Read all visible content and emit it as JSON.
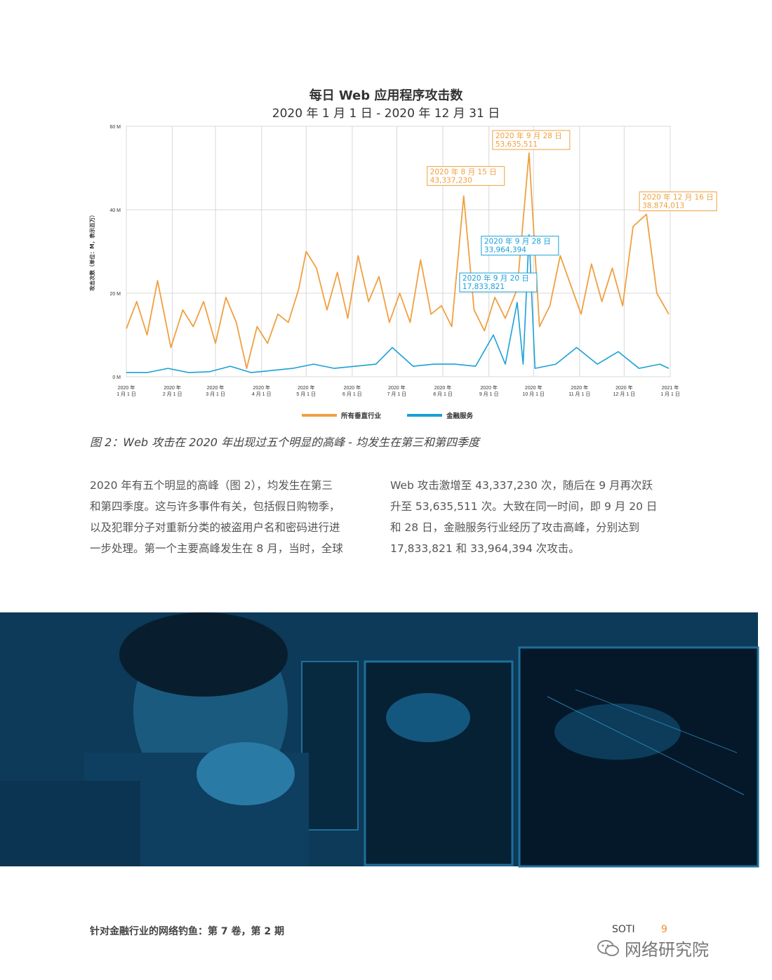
{
  "chart_data": {
    "type": "line",
    "title": "每日 Web 应用程序攻击数",
    "subtitle": "2020 年 1 月 1 日 - 2020 年 12 月 31 日",
    "ylabel": "攻击次数（单位：M，表示百万）",
    "ylim": [
      0,
      60
    ],
    "y_ticks": [
      "0 M",
      "20 M",
      "40 M",
      "60 M"
    ],
    "x_tick_labels": [
      [
        "2020 年",
        "1 月 1 日"
      ],
      [
        "2020 年",
        "2 月 1 日"
      ],
      [
        "2020 年",
        "3 月 1 日"
      ],
      [
        "2020 年",
        "4 月 1 日"
      ],
      [
        "2020 年",
        "5 月 1 日"
      ],
      [
        "2020 年",
        "6 月 1 日"
      ],
      [
        "2020 年",
        "7 月 1 日"
      ],
      [
        "2020 年",
        "8 月 1 日"
      ],
      [
        "2020 年",
        "9 月 1 日"
      ],
      [
        "2020 年",
        "10 月 1 日"
      ],
      [
        "2020 年",
        "11 月 1 日"
      ],
      [
        "2020 年",
        "12 月 1 日"
      ],
      [
        "2021 年",
        "1 月 1 日"
      ]
    ],
    "x_start": "2020-01-01",
    "x_end": "2021-01-01",
    "grid": true,
    "legend_position": "bottom",
    "series": [
      {
        "name": "所有垂直行业",
        "color": "#f0a040",
        "points": [
          [
            "2020-01-01",
            11.5
          ],
          [
            "2020-01-08",
            18
          ],
          [
            "2020-01-15",
            10
          ],
          [
            "2020-01-22",
            23
          ],
          [
            "2020-01-31",
            7
          ],
          [
            "2020-02-08",
            16
          ],
          [
            "2020-02-15",
            12
          ],
          [
            "2020-02-22",
            18
          ],
          [
            "2020-03-01",
            8
          ],
          [
            "2020-03-08",
            19
          ],
          [
            "2020-03-15",
            13
          ],
          [
            "2020-03-22",
            2
          ],
          [
            "2020-03-29",
            12
          ],
          [
            "2020-04-05",
            8
          ],
          [
            "2020-04-12",
            15
          ],
          [
            "2020-04-19",
            13
          ],
          [
            "2020-04-26",
            21
          ],
          [
            "2020-05-01",
            30
          ],
          [
            "2020-05-08",
            26
          ],
          [
            "2020-05-15",
            16
          ],
          [
            "2020-05-22",
            25
          ],
          [
            "2020-05-29",
            14
          ],
          [
            "2020-06-05",
            29
          ],
          [
            "2020-06-12",
            18
          ],
          [
            "2020-06-19",
            24
          ],
          [
            "2020-06-26",
            13
          ],
          [
            "2020-07-03",
            20
          ],
          [
            "2020-07-10",
            13
          ],
          [
            "2020-07-17",
            28
          ],
          [
            "2020-07-24",
            15
          ],
          [
            "2020-07-31",
            17
          ],
          [
            "2020-08-07",
            12
          ],
          [
            "2020-08-15",
            43.3
          ],
          [
            "2020-08-22",
            16
          ],
          [
            "2020-08-29",
            11
          ],
          [
            "2020-09-05",
            19
          ],
          [
            "2020-09-12",
            14
          ],
          [
            "2020-09-20",
            21
          ],
          [
            "2020-09-28",
            53.6
          ],
          [
            "2020-10-05",
            12
          ],
          [
            "2020-10-12",
            17
          ],
          [
            "2020-10-19",
            29
          ],
          [
            "2020-10-26",
            22
          ],
          [
            "2020-11-02",
            15
          ],
          [
            "2020-11-09",
            27
          ],
          [
            "2020-11-16",
            18
          ],
          [
            "2020-11-23",
            26
          ],
          [
            "2020-11-30",
            17
          ],
          [
            "2020-12-07",
            36
          ],
          [
            "2020-12-16",
            38.9
          ],
          [
            "2020-12-23",
            20
          ],
          [
            "2020-12-31",
            15
          ]
        ]
      },
      {
        "name": "金融服务",
        "color": "#1aa0d8",
        "points": [
          [
            "2020-01-01",
            1
          ],
          [
            "2020-01-15",
            1
          ],
          [
            "2020-01-29",
            2
          ],
          [
            "2020-02-12",
            1
          ],
          [
            "2020-02-26",
            1.2
          ],
          [
            "2020-03-11",
            2.5
          ],
          [
            "2020-03-25",
            1
          ],
          [
            "2020-04-08",
            1.5
          ],
          [
            "2020-04-22",
            2
          ],
          [
            "2020-05-06",
            3
          ],
          [
            "2020-05-20",
            2
          ],
          [
            "2020-06-03",
            2.5
          ],
          [
            "2020-06-17",
            3
          ],
          [
            "2020-06-28",
            7
          ],
          [
            "2020-07-12",
            2.5
          ],
          [
            "2020-07-26",
            3
          ],
          [
            "2020-08-09",
            3
          ],
          [
            "2020-08-23",
            2.5
          ],
          [
            "2020-09-04",
            10
          ],
          [
            "2020-09-12",
            3
          ],
          [
            "2020-09-20",
            17.8
          ],
          [
            "2020-09-24",
            3
          ],
          [
            "2020-09-28",
            34
          ],
          [
            "2020-10-02",
            2
          ],
          [
            "2020-10-16",
            3
          ],
          [
            "2020-10-30",
            7
          ],
          [
            "2020-11-13",
            3
          ],
          [
            "2020-11-27",
            6
          ],
          [
            "2020-12-11",
            2
          ],
          [
            "2020-12-25",
            3
          ],
          [
            "2020-12-31",
            2
          ]
        ]
      }
    ],
    "annotations": [
      {
        "series": 0,
        "date": "2020-08-15",
        "lines": [
          "2020 年 8 月 15 日",
          "43,337,230"
        ],
        "color": "#f0a040"
      },
      {
        "series": 0,
        "date": "2020-09-28",
        "lines": [
          "2020 年 9 月 28 日",
          "53,635,511"
        ],
        "color": "#f0a040"
      },
      {
        "series": 0,
        "date": "2020-12-16",
        "lines": [
          "2020 年 12 月 16 日",
          "38,874,013"
        ],
        "color": "#f0a040"
      },
      {
        "series": 1,
        "date": "2020-09-28",
        "lines": [
          "2020 年 9 月 28 日",
          "33,964,394"
        ],
        "color": "#1aa0d8"
      },
      {
        "series": 1,
        "date": "2020-09-20",
        "lines": [
          "2020 年 9 月 20 日",
          "17,833,821"
        ],
        "color": "#1aa0d8"
      }
    ]
  },
  "caption": "图 2：Web 攻击在 2020 年出现过五个明显的高峰 - 均发生在第三和第四季度",
  "body": {
    "left_lines": [
      "2020 年有五个明显的高峰（图 2），均发生在第三",
      "和第四季度。这与许多事件有关，包括假日购物季，",
      "以及犯罪分子对重新分类的被盗用户名和密码进行进",
      "一步处理。第一个主要高峰发生在 8 月，当时，全球"
    ],
    "right_lines": [
      "Web 攻击激增至 43,337,230 次，随后在 9 月再次跃",
      "升至 53,635,511 次。大致在同一时间，即 9 月 20 日",
      "和 28 日，金融服务行业经历了攻击高峰，分别达到",
      "17,833,821 和 33,964,394 次攻击。"
    ]
  },
  "footer": {
    "left": "针对金融行业的网络钓鱼：第 7 卷，第 2 期",
    "soti": "SOTI",
    "page": "9"
  },
  "watermark": "网络研究院"
}
